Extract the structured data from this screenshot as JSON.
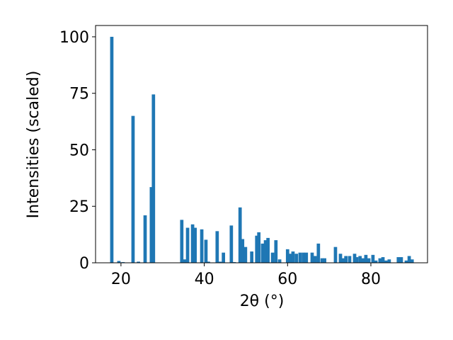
{
  "chart_data": {
    "type": "bar",
    "xlabel": "2θ (°)",
    "ylabel": "Intensities (scaled)",
    "color": "#1f77b4",
    "x": [
      17.8,
      19.5,
      20.5,
      22.9,
      24.2,
      25.8,
      27.3,
      27.8,
      34.6,
      35.3,
      36.0,
      37.2,
      37.8,
      39.4,
      40.4,
      41.0,
      43.1,
      43.8,
      44.6,
      46.5,
      47.2,
      48.6,
      49.2,
      49.9,
      51.4,
      52.6,
      53.1,
      54.0,
      54.7,
      55.3,
      56.4,
      57.2,
      58.1,
      60.0,
      60.6,
      61.3,
      62.1,
      63.0,
      63.8,
      64.5,
      65.9,
      66.6,
      67.4,
      68.3,
      68.9,
      71.5,
      72.7,
      73.4,
      74.0,
      74.9,
      76.1,
      76.6,
      77.4,
      78.1,
      78.8,
      79.5,
      80.5,
      81.2,
      82.2,
      82.9,
      83.6,
      84.4,
      86.6,
      87.3,
      88.5,
      89.2,
      89.9
    ],
    "values": [
      100,
      0.8,
      0.3,
      65,
      0.5,
      21,
      33.5,
      74.5,
      19,
      1.5,
      15.5,
      17,
      15.5,
      14.8,
      10.2,
      0.5,
      14,
      0.5,
      4.5,
      16.5,
      0.3,
      24.5,
      10.5,
      7,
      5,
      12,
      13.5,
      8.5,
      10,
      11,
      4.5,
      10,
      1.5,
      6,
      4,
      5,
      4,
      4.5,
      4.5,
      4.5,
      4.5,
      3,
      8.5,
      2,
      2,
      7,
      4,
      2,
      3,
      3,
      4,
      2.5,
      3,
      2,
      3.5,
      2,
      3.5,
      1,
      2,
      2.5,
      1,
      1.5,
      2.5,
      2.5,
      1,
      3,
      1.5
    ],
    "xlim": [
      13.9,
      93.6
    ],
    "ylim": [
      0,
      105
    ],
    "xticks": [
      20,
      40,
      60,
      80
    ],
    "yticks": [
      0,
      25,
      50,
      75,
      100
    ]
  }
}
